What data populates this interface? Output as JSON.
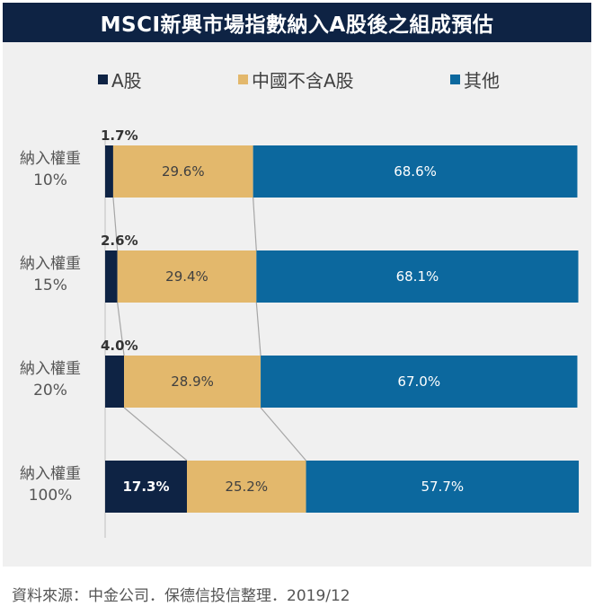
{
  "title": "MSCI新興市場指數納入A股後之組成預估",
  "footer": "資料來源：中金公司．保德信投信整理．2019/12",
  "colors": {
    "a_share": "#0e2344",
    "china_ex_a": "#e3b86c",
    "others": "#0c689e"
  },
  "chart_data": {
    "type": "bar",
    "orientation": "horizontal",
    "stacked": "percent",
    "categories": [
      [
        "納入權重",
        "10%"
      ],
      [
        "納入權重",
        "15%"
      ],
      [
        "納入權重",
        "20%"
      ],
      [
        "納入權重",
        "100%"
      ]
    ],
    "series": [
      {
        "name": "A股",
        "color": "#0e2344",
        "values": [
          1.7,
          2.6,
          4.0,
          17.3
        ],
        "labels": [
          "1.7%",
          "2.6%",
          "4.0%",
          "17.3%"
        ]
      },
      {
        "name": "中國不含A股",
        "color": "#e3b86c",
        "values": [
          29.6,
          29.4,
          28.9,
          25.2
        ],
        "labels": [
          "29.6%",
          "29.4%",
          "28.9%",
          "25.2%"
        ]
      },
      {
        "name": "其他",
        "color": "#0c689e",
        "values": [
          68.6,
          68.1,
          67.0,
          57.7
        ],
        "labels": [
          "68.6%",
          "68.1%",
          "67.0%",
          "57.7%"
        ]
      }
    ],
    "xlim": [
      0,
      100
    ],
    "legend_position": "top",
    "series_lines": true,
    "grid": false
  }
}
